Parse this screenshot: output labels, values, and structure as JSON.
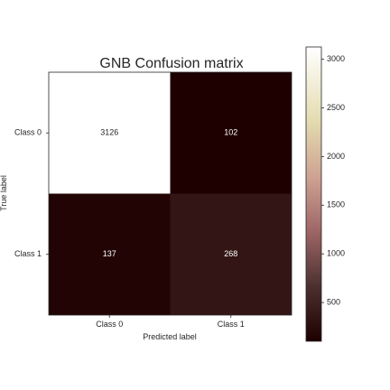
{
  "chart_data": {
    "type": "heatmap",
    "title": "GNB Confusion matrix",
    "xlabel": "Predicted label",
    "ylabel": "True label",
    "x_categories": [
      "Class 0",
      "Class 1"
    ],
    "y_categories": [
      "Class 0",
      "Class 1"
    ],
    "matrix": [
      [
        3126,
        102
      ],
      [
        137,
        268
      ]
    ],
    "colormap": "pink",
    "colorbar": {
      "range": [
        102,
        3126
      ],
      "ticks": [
        500,
        1000,
        1500,
        2000,
        2500,
        3000
      ],
      "tick_labels": [
        "500",
        "1000",
        "1500",
        "2000",
        "2500",
        "3000"
      ]
    },
    "grid": false
  }
}
